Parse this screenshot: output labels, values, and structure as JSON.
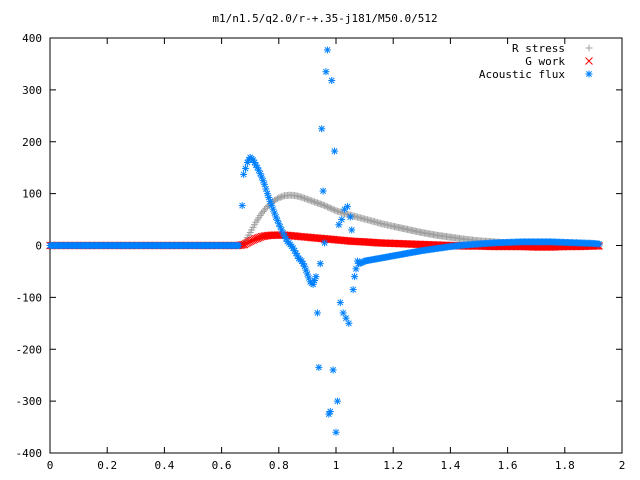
{
  "chart_data": {
    "type": "scatter",
    "title": "m1/n1.5/q2.0/r-+.35-j181/M50.0/512",
    "xlabel": "",
    "ylabel": "",
    "xlim": [
      0,
      2
    ],
    "ylim": [
      -400,
      400
    ],
    "x_ticks": [
      0,
      0.2,
      0.4,
      0.6,
      0.8,
      1,
      1.2,
      1.4,
      1.6,
      1.8,
      2
    ],
    "x_tick_labels": [
      "0",
      "0.2",
      "0.4",
      "0.6",
      "0.8",
      "1",
      "1.2",
      "1.4",
      "1.6",
      "1.8",
      "2"
    ],
    "y_ticks": [
      -400,
      -300,
      -200,
      -100,
      0,
      100,
      200,
      300,
      400
    ],
    "y_tick_labels": [
      "-400",
      "-300",
      "-200",
      "-100",
      "0",
      "100",
      "200",
      "300",
      "400"
    ],
    "grid": false,
    "legend_position": "top-right",
    "series": [
      {
        "name": "R stress",
        "marker": "plus",
        "color": "#a0a0a0",
        "x": [
          0.0,
          0.6,
          0.66,
          0.68,
          0.7,
          0.72,
          0.74,
          0.76,
          0.78,
          0.8,
          0.82,
          0.84,
          0.86,
          0.88,
          0.9,
          0.92,
          0.94,
          0.96,
          0.98,
          1.0,
          1.04,
          1.08,
          1.12,
          1.16,
          1.2,
          1.25,
          1.3,
          1.35,
          1.4,
          1.45,
          1.5,
          1.55,
          1.6,
          1.65,
          1.7,
          1.75,
          1.8,
          1.85,
          1.9,
          1.92
        ],
        "y": [
          0,
          0,
          0,
          5,
          25,
          45,
          62,
          75,
          85,
          92,
          96,
          97,
          96,
          93,
          89,
          85,
          81,
          77,
          72,
          67,
          60,
          54,
          48,
          42,
          37,
          31,
          25,
          20,
          16,
          12,
          9,
          7,
          5,
          4,
          3,
          2,
          2,
          1,
          1,
          1
        ]
      },
      {
        "name": "G work",
        "marker": "cross",
        "color": "#ff0000",
        "x": [
          0.0,
          0.6,
          0.66,
          0.68,
          0.7,
          0.72,
          0.74,
          0.76,
          0.78,
          0.8,
          0.82,
          0.84,
          0.86,
          0.88,
          0.9,
          0.94,
          0.98,
          1.02,
          1.06,
          1.1,
          1.15,
          1.2,
          1.25,
          1.3,
          1.35,
          1.4,
          1.45,
          1.5,
          1.55,
          1.6,
          1.65,
          1.7,
          1.75,
          1.8,
          1.85,
          1.9,
          1.92
        ],
        "y": [
          0,
          0,
          0,
          2,
          8,
          13,
          17,
          19,
          20,
          20,
          20,
          19,
          18,
          17,
          16,
          14,
          12,
          10,
          8,
          7,
          5,
          4,
          3,
          2,
          1,
          0,
          -1,
          -1,
          -2,
          -2,
          -2,
          -3,
          -3,
          -2,
          -2,
          -1,
          -1
        ]
      },
      {
        "name": "Acoustic flux",
        "marker": "star",
        "color": "#0080ff",
        "x": [
          0.0,
          0.6,
          0.66,
          0.672,
          0.677,
          0.69,
          0.7,
          0.71,
          0.72,
          0.73,
          0.74,
          0.75,
          0.76,
          0.77,
          0.78,
          0.79,
          0.8,
          0.81,
          0.82,
          0.83,
          0.84,
          0.85,
          0.86,
          0.87,
          0.88,
          0.89,
          0.9,
          0.91,
          0.92,
          0.93,
          0.935,
          0.94,
          0.945,
          0.95,
          0.955,
          0.96,
          0.965,
          0.97,
          0.975,
          0.98,
          0.985,
          0.99,
          0.995,
          1.0,
          1.005,
          1.01,
          1.015,
          1.02,
          1.025,
          1.03,
          1.035,
          1.04,
          1.045,
          1.05,
          1.055,
          1.06,
          1.065,
          1.07,
          1.075,
          1.08,
          1.09,
          1.1,
          1.12,
          1.15,
          1.2,
          1.25,
          1.3,
          1.35,
          1.4,
          1.45,
          1.5,
          1.55,
          1.6,
          1.65,
          1.7,
          1.75,
          1.8,
          1.85,
          1.9,
          1.92
        ],
        "y": [
          0,
          0,
          0,
          77,
          137,
          160,
          170,
          165,
          155,
          145,
          132,
          118,
          100,
          85,
          70,
          55,
          42,
          30,
          18,
          8,
          2,
          -5,
          -15,
          -25,
          -30,
          -40,
          -55,
          -70,
          -75,
          -60,
          -130,
          -235,
          -35,
          225,
          105,
          5,
          335,
          377,
          -325,
          -320,
          318,
          -240,
          182,
          -360,
          -300,
          40,
          -110,
          50,
          -130,
          70,
          -140,
          75,
          -150,
          55,
          30,
          -85,
          -60,
          -45,
          -30,
          -35,
          -33,
          -30,
          -28,
          -25,
          -20,
          -15,
          -10,
          -6,
          -2,
          1,
          3,
          5,
          6,
          7,
          7,
          7,
          6,
          5,
          4,
          3
        ]
      }
    ]
  }
}
